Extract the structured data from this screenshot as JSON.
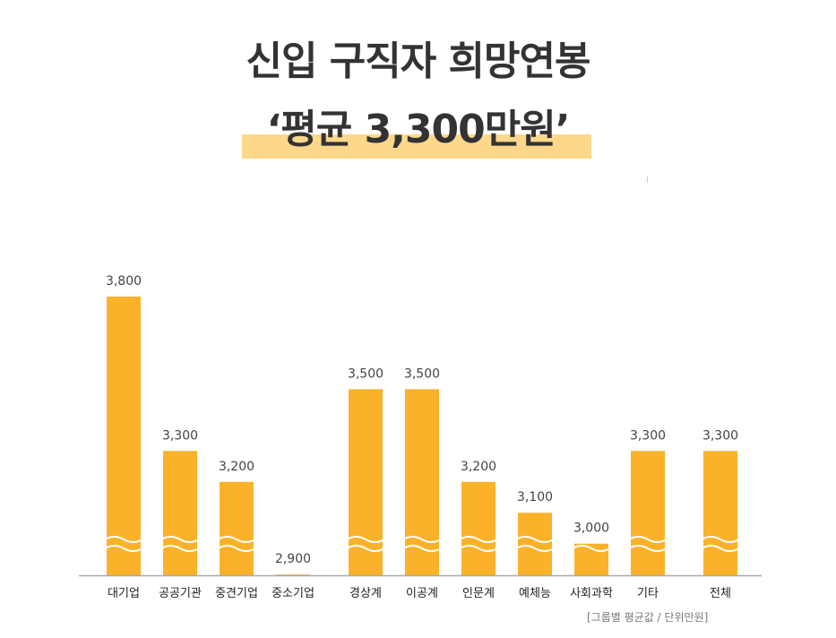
{
  "title": {
    "line1": "신입 구직자 희망연봉",
    "line2": "‘평균 3,300만원’"
  },
  "note": "[그룹별 평균값 / 단위만원]",
  "colors": {
    "bar": "#fbb22a",
    "highlight": "#fdd88a",
    "baseline": "#aaaaaa",
    "wave": "#ffffff"
  },
  "chart_data": {
    "type": "bar",
    "categories": [
      "대기업",
      "공공기관",
      "중견기업",
      "중소기업",
      "경상계",
      "이공계",
      "인문계",
      "예체능",
      "사회과학",
      "기타",
      "전체"
    ],
    "values": [
      3800,
      3300,
      3200,
      2900,
      3500,
      3500,
      3200,
      3100,
      3000,
      3300,
      3300
    ],
    "value_labels": [
      "3,800",
      "3,300",
      "3,200",
      "2,900",
      "3,500",
      "3,500",
      "3,200",
      "3,100",
      "3,000",
      "3,300",
      "3,300"
    ],
    "title": "신입 구직자 희망연봉 ‘평균 3,300만원’",
    "xlabel": "",
    "ylabel": "",
    "axis_break": true,
    "grid": false,
    "legend": "none"
  }
}
